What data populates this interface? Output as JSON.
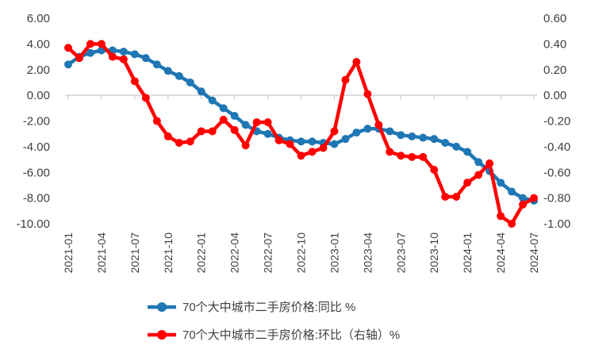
{
  "chart_data": {
    "type": "line",
    "title": "",
    "x": [
      "2021-01",
      "2021-02",
      "2021-03",
      "2021-04",
      "2021-05",
      "2021-06",
      "2021-07",
      "2021-08",
      "2021-09",
      "2021-10",
      "2021-11",
      "2021-12",
      "2022-01",
      "2022-02",
      "2022-03",
      "2022-04",
      "2022-05",
      "2022-06",
      "2022-07",
      "2022-08",
      "2022-09",
      "2022-10",
      "2022-11",
      "2022-12",
      "2023-01",
      "2023-02",
      "2023-03",
      "2023-04",
      "2023-05",
      "2023-06",
      "2023-07",
      "2023-08",
      "2023-09",
      "2023-10",
      "2023-11",
      "2023-12",
      "2024-01",
      "2024-02",
      "2024-03",
      "2024-04",
      "2024-05",
      "2024-06",
      "2024-07"
    ],
    "x_tick_labels": [
      "2021-01",
      "2021-04",
      "2021-07",
      "2021-10",
      "2022-01",
      "2022-04",
      "2022-07",
      "2022-10",
      "2023-01",
      "2023-04",
      "2023-07",
      "2023-10",
      "2024-01",
      "2024-04",
      "2024-07"
    ],
    "y_left": {
      "lim": [
        -10,
        6
      ],
      "ticks": [
        "6.00",
        "4.00",
        "2.00",
        "0.00",
        "-2.00",
        "-4.00",
        "-6.00",
        "-8.00",
        "-10.00"
      ]
    },
    "y_right": {
      "lim": [
        -1,
        0.6
      ],
      "ticks": [
        "0.60",
        "0.40",
        "0.20",
        "0.00",
        "-0.20",
        "-0.40",
        "-0.60",
        "-0.80",
        "-1.00"
      ]
    },
    "grid": false,
    "legend_position": "bottom",
    "series": [
      {
        "name": "70个大中城市二手房价格:同比 %",
        "axis": "left",
        "color": "#1F77B4",
        "values": [
          2.4,
          3.0,
          3.3,
          3.5,
          3.5,
          3.4,
          3.2,
          2.9,
          2.4,
          1.9,
          1.5,
          1.0,
          0.3,
          -0.4,
          -1.0,
          -1.6,
          -2.3,
          -2.8,
          -3.0,
          -3.3,
          -3.5,
          -3.6,
          -3.6,
          -3.7,
          -3.8,
          -3.4,
          -2.9,
          -2.6,
          -2.6,
          -2.8,
          -3.1,
          -3.2,
          -3.3,
          -3.4,
          -3.7,
          -4.0,
          -4.4,
          -5.2,
          -5.9,
          -6.8,
          -7.5,
          -8.0,
          -8.2
        ]
      },
      {
        "name": "70个大中城市二手房价格:环比（右轴）%",
        "axis": "right",
        "color": "#FF0000",
        "values": [
          0.37,
          0.29,
          0.4,
          0.4,
          0.3,
          0.28,
          0.11,
          -0.02,
          -0.2,
          -0.32,
          -0.37,
          -0.36,
          -0.28,
          -0.28,
          -0.19,
          -0.27,
          -0.39,
          -0.21,
          -0.21,
          -0.35,
          -0.38,
          -0.47,
          -0.44,
          -0.41,
          -0.28,
          0.12,
          0.26,
          0.01,
          -0.23,
          -0.44,
          -0.47,
          -0.48,
          -0.48,
          -0.58,
          -0.79,
          -0.79,
          -0.68,
          -0.62,
          -0.53,
          -0.94,
          -1.0,
          -0.85,
          -0.8
        ]
      }
    ]
  }
}
